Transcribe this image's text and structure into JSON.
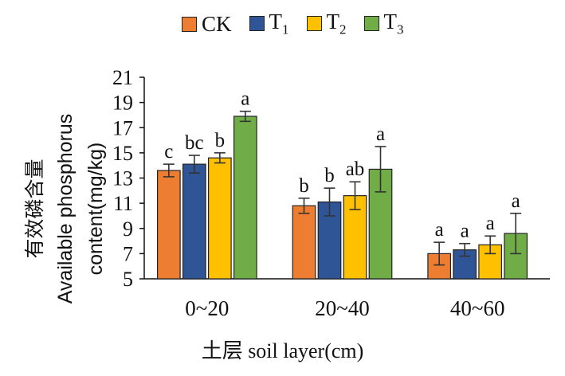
{
  "chart_data": {
    "type": "bar",
    "ylabel_line1": "有效磷含量",
    "ylabel_line2": "Available phosphorus",
    "ylabel_line3": "content(mg/kg)",
    "xlabel": "土层 soil layer(cm)",
    "ylim": [
      5,
      21
    ],
    "yticks": [
      5,
      7,
      9,
      11,
      13,
      15,
      17,
      19,
      21
    ],
    "categories": [
      "0~20",
      "20~40",
      "40~60"
    ],
    "grid": false,
    "legend_position": "top",
    "series": [
      {
        "name": "CK",
        "sub": "",
        "color": "#ED7D31",
        "values": [
          13.6,
          10.8,
          7.0
        ],
        "errors": [
          0.5,
          0.6,
          0.9
        ],
        "labels": [
          "c",
          "b",
          "a"
        ]
      },
      {
        "name": "T",
        "sub": "1",
        "color": "#2F5597",
        "values": [
          14.1,
          11.1,
          7.3
        ],
        "errors": [
          0.7,
          1.1,
          0.5
        ],
        "labels": [
          "bc",
          "b",
          "a"
        ]
      },
      {
        "name": "T",
        "sub": "2",
        "color": "#FFC000",
        "values": [
          14.6,
          11.6,
          7.7
        ],
        "errors": [
          0.4,
          1.1,
          0.7
        ],
        "labels": [
          "b",
          "ab",
          "a"
        ]
      },
      {
        "name": "T",
        "sub": "3",
        "color": "#70AD47",
        "values": [
          17.9,
          13.7,
          8.6
        ],
        "errors": [
          0.4,
          1.8,
          1.6
        ],
        "labels": [
          "a",
          "a",
          "a"
        ]
      }
    ]
  }
}
